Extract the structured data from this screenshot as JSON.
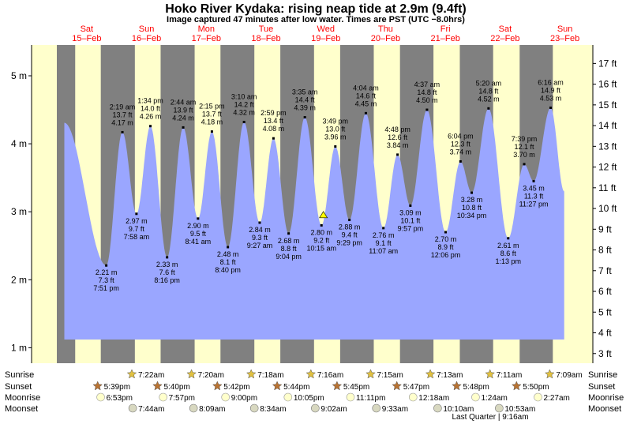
{
  "title": "Hoko River Kydaka: rising  neap tide at 2.9m (9.4ft)",
  "subtitle": "Image captured 47 minutes after low water. Times are PST (UTC −8.0hrs)",
  "colors": {
    "day": "#ffffcc",
    "night": "#808080",
    "water": "#9aa6ff",
    "day_label": "#ff0000",
    "sun_star": "#e0c040",
    "sunset_star": "#b87333",
    "moon": "#ffffcc"
  },
  "days": [
    {
      "dow": "Sat",
      "date": "15–Feb"
    },
    {
      "dow": "Sun",
      "date": "16–Feb"
    },
    {
      "dow": "Mon",
      "date": "17–Feb"
    },
    {
      "dow": "Tue",
      "date": "18–Feb"
    },
    {
      "dow": "Wed",
      "date": "19–Feb"
    },
    {
      "dow": "Thu",
      "date": "20–Feb"
    },
    {
      "dow": "Fri",
      "date": "21–Feb"
    },
    {
      "dow": "Sat",
      "date": "22–Feb"
    },
    {
      "dow": "Sun",
      "date": "23–Feb"
    }
  ],
  "chart_data": {
    "type": "area",
    "title": "Hoko River Kydaka: rising  neap tide at 2.9m (9.4ft)",
    "ylabel_left": "m",
    "ylabel_right": "ft",
    "ylim_m": [
      0.75,
      5.45
    ],
    "yticks_m": [
      "1 m",
      "2 m",
      "3 m",
      "4 m",
      "5 m"
    ],
    "yticks_ft": [
      "3 ft",
      "4 ft",
      "5 ft",
      "6 ft",
      "7 ft",
      "8 ft",
      "9 ft",
      "10 ft",
      "11 ft",
      "12 ft",
      "13 ft",
      "14 ft",
      "15 ft",
      "16 ft",
      "17 ft"
    ],
    "x_unit": "hours from Sat 15-Feb 00:00 PST",
    "night_bands": [
      [
        0,
        7.37
      ],
      [
        17.65,
        31.33
      ],
      [
        41.67,
        55.33
      ],
      [
        65.7,
        79.3
      ],
      [
        89.73,
        103.27
      ],
      [
        113.75,
        127.25
      ],
      [
        137.78,
        151.22
      ],
      [
        161.8,
        175.18
      ],
      [
        185.83,
        199.15
      ]
    ],
    "extrema": [
      {
        "type": "high",
        "time_label": "",
        "m_label": "",
        "ft_label": "",
        "hour": 3.0,
        "m": 4.31
      },
      {
        "type": "low",
        "time_label": "7:51 pm",
        "m_label": "2.21 m",
        "ft_label": "7.3 ft",
        "hour": 19.85,
        "m": 2.21
      },
      {
        "type": "high",
        "time_label": "2:19 am",
        "m_label": "4.17 m",
        "ft_label": "13.7 ft",
        "hour": 26.32,
        "m": 4.17
      },
      {
        "type": "low",
        "time_label": "7:58 am",
        "m_label": "2.97 m",
        "ft_label": "9.7 ft",
        "hour": 31.97,
        "m": 2.97
      },
      {
        "type": "high",
        "time_label": "1:34 pm",
        "m_label": "4.26 m",
        "ft_label": "14.0 ft",
        "hour": 37.57,
        "m": 4.26
      },
      {
        "type": "low",
        "time_label": "8:16 pm",
        "m_label": "2.33 m",
        "ft_label": "7.6 ft",
        "hour": 44.27,
        "m": 2.33
      },
      {
        "type": "high",
        "time_label": "2:44 am",
        "m_label": "4.24 m",
        "ft_label": "13.9 ft",
        "hour": 50.73,
        "m": 4.24
      },
      {
        "type": "low",
        "time_label": "8:41 am",
        "m_label": "2.90 m",
        "ft_label": "9.5 ft",
        "hour": 56.68,
        "m": 2.9
      },
      {
        "type": "high",
        "time_label": "2:15 pm",
        "m_label": "4.18 m",
        "ft_label": "13.7 ft",
        "hour": 62.25,
        "m": 4.18
      },
      {
        "type": "low",
        "time_label": "8:40 pm",
        "m_label": "2.48 m",
        "ft_label": "8.1 ft",
        "hour": 68.67,
        "m": 2.48
      },
      {
        "type": "high",
        "time_label": "3:10 am",
        "m_label": "4.32 m",
        "ft_label": "14.2 ft",
        "hour": 75.17,
        "m": 4.32
      },
      {
        "type": "low",
        "time_label": "9:27 am",
        "m_label": "2.84 m",
        "ft_label": "9.3 ft",
        "hour": 81.45,
        "m": 2.84
      },
      {
        "type": "high",
        "time_label": "2:59 pm",
        "m_label": "4.08 m",
        "ft_label": "13.4 ft",
        "hour": 86.98,
        "m": 4.08
      },
      {
        "type": "low",
        "time_label": "9:04 pm",
        "m_label": "2.68 m",
        "ft_label": "8.8 ft",
        "hour": 93.07,
        "m": 2.68
      },
      {
        "type": "high",
        "time_label": "3:35 am",
        "m_label": "4.39 m",
        "ft_label": "14.4 ft",
        "hour": 99.58,
        "m": 4.39
      },
      {
        "type": "low",
        "time_label": "10:15 am",
        "m_label": "2.80 m",
        "ft_label": "9.2 ft",
        "hour": 106.25,
        "m": 2.8
      },
      {
        "type": "high",
        "time_label": "3:49 pm",
        "m_label": "3.96 m",
        "ft_label": "13.0 ft",
        "hour": 111.82,
        "m": 3.96
      },
      {
        "type": "low",
        "time_label": "9:29 pm",
        "m_label": "2.88 m",
        "ft_label": "9.4 ft",
        "hour": 117.48,
        "m": 2.88
      },
      {
        "type": "high",
        "time_label": "4:04 am",
        "m_label": "4.45 m",
        "ft_label": "14.6 ft",
        "hour": 124.07,
        "m": 4.45
      },
      {
        "type": "low",
        "time_label": "11:07 am",
        "m_label": "2.76 m",
        "ft_label": "9.1 ft",
        "hour": 131.12,
        "m": 2.76
      },
      {
        "type": "high",
        "time_label": "4:48 pm",
        "m_label": "3.84 m",
        "ft_label": "12.6 ft",
        "hour": 136.8,
        "m": 3.84
      },
      {
        "type": "low",
        "time_label": "9:57 pm",
        "m_label": "3.09 m",
        "ft_label": "10.1 ft",
        "hour": 141.95,
        "m": 3.09
      },
      {
        "type": "high",
        "time_label": "4:37 am",
        "m_label": "4.50 m",
        "ft_label": "14.8 ft",
        "hour": 148.62,
        "m": 4.5
      },
      {
        "type": "low",
        "time_label": "12:06 pm",
        "m_label": "2.70 m",
        "ft_label": "8.9 ft",
        "hour": 156.1,
        "m": 2.7
      },
      {
        "type": "high",
        "time_label": "6:04 pm",
        "m_label": "3.74 m",
        "ft_label": "12.3 ft",
        "hour": 162.07,
        "m": 3.74
      },
      {
        "type": "low",
        "time_label": "10:34 pm",
        "m_label": "3.28 m",
        "ft_label": "10.8 ft",
        "hour": 166.57,
        "m": 3.28
      },
      {
        "type": "high",
        "time_label": "5:20 am",
        "m_label": "4.52 m",
        "ft_label": "14.8 ft",
        "hour": 173.33,
        "m": 4.52
      },
      {
        "type": "low",
        "time_label": "1:13 pm",
        "m_label": "2.61 m",
        "ft_label": "8.6 ft",
        "hour": 181.22,
        "m": 2.61
      },
      {
        "type": "high",
        "time_label": "7:39 pm",
        "m_label": "3.70 m",
        "ft_label": "12.1 ft",
        "hour": 187.65,
        "m": 3.7
      },
      {
        "type": "low",
        "time_label": "11:27 pm",
        "m_label": "3.45 m",
        "ft_label": "11.3 ft",
        "hour": 191.45,
        "m": 3.45
      },
      {
        "type": "high",
        "time_label": "6:16 am",
        "m_label": "4.53 m",
        "ft_label": "14.9 ft",
        "hour": 198.27,
        "m": 4.53
      },
      {
        "type": "end",
        "time_label": "",
        "m_label": "",
        "ft_label": "",
        "hour": 203.7,
        "m": 3.3
      }
    ],
    "current": {
      "hour": 107.03,
      "m": 2.9
    }
  },
  "events": {
    "row_labels": {
      "sunrise": "Sunrise",
      "sunset": "Sunset",
      "moonrise": "Moonrise",
      "moonset": "Moonset"
    },
    "sunrise": [
      {
        "label": "7:22am",
        "hour": 31.37
      },
      {
        "label": "7:20am",
        "hour": 55.33
      },
      {
        "label": "7:18am",
        "hour": 79.3
      },
      {
        "label": "7:16am",
        "hour": 103.27
      },
      {
        "label": "7:15am",
        "hour": 127.25
      },
      {
        "label": "7:13am",
        "hour": 151.22
      },
      {
        "label": "7:11am",
        "hour": 175.18
      },
      {
        "label": "7:09am",
        "hour": 199.15
      }
    ],
    "sunset": [
      {
        "label": "5:39pm",
        "hour": 17.65
      },
      {
        "label": "5:40pm",
        "hour": 41.67
      },
      {
        "label": "5:42pm",
        "hour": 65.7
      },
      {
        "label": "5:44pm",
        "hour": 89.73
      },
      {
        "label": "5:45pm",
        "hour": 113.75
      },
      {
        "label": "5:47pm",
        "hour": 137.78
      },
      {
        "label": "5:48pm",
        "hour": 161.8
      },
      {
        "label": "5:50pm",
        "hour": 185.83
      }
    ],
    "moonrise": [
      {
        "label": "6:53pm",
        "hour": 18.88
      },
      {
        "label": "7:57pm",
        "hour": 43.95
      },
      {
        "label": "9:00pm",
        "hour": 69.0
      },
      {
        "label": "10:05pm",
        "hour": 94.08
      },
      {
        "label": "11:11pm",
        "hour": 119.18
      },
      {
        "label": "12:18am",
        "hour": 144.3
      },
      {
        "label": "1:24am",
        "hour": 169.4
      },
      {
        "label": "2:27am",
        "hour": 194.45
      }
    ],
    "moonset": [
      {
        "label": "7:44am",
        "hour": 31.73
      },
      {
        "label": "8:09am",
        "hour": 56.15
      },
      {
        "label": "8:34am",
        "hour": 80.57
      },
      {
        "label": "9:02am",
        "hour": 105.03
      },
      {
        "label": "9:33am",
        "hour": 129.55
      },
      {
        "label": "10:10am",
        "hour": 154.17
      },
      {
        "label": "10:53am",
        "hour": 178.88
      }
    ],
    "moon_phase": "Last Quarter | 9:16am"
  }
}
